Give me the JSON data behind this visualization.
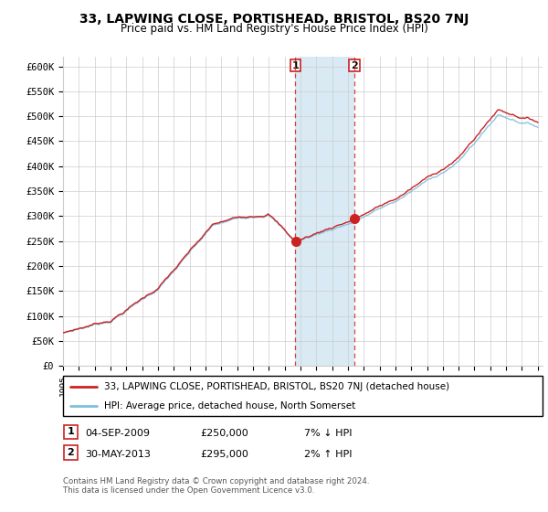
{
  "title": "33, LAPWING CLOSE, PORTISHEAD, BRISTOL, BS20 7NJ",
  "subtitle": "Price paid vs. HM Land Registry's House Price Index (HPI)",
  "legend_line1": "33, LAPWING CLOSE, PORTISHEAD, BRISTOL, BS20 7NJ (detached house)",
  "legend_line2": "HPI: Average price, detached house, North Somerset",
  "transaction1_date": "04-SEP-2009",
  "transaction1_price": "£250,000",
  "transaction1_hpi": "7% ↓ HPI",
  "transaction2_date": "30-MAY-2013",
  "transaction2_price": "£295,000",
  "transaction2_hpi": "2% ↑ HPI",
  "footer": "Contains HM Land Registry data © Crown copyright and database right 2024.\nThis data is licensed under the Open Government Licence v3.0.",
  "hpi_color": "#7fbfdf",
  "price_color": "#cc2222",
  "marker_color": "#cc2222",
  "shading_color": "#daeaf5",
  "ylim_min": 0,
  "ylim_max": 620000,
  "ytick_values": [
    0,
    50000,
    100000,
    150000,
    200000,
    250000,
    300000,
    350000,
    400000,
    450000,
    500000,
    550000,
    600000
  ],
  "transaction1_year": 2009.67,
  "transaction2_year": 2013.41,
  "background_color": "#ffffff",
  "grid_color": "#cccccc"
}
